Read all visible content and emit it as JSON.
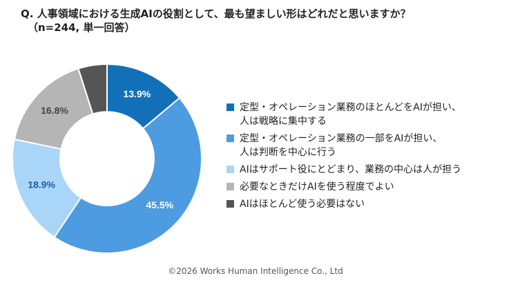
{
  "chart_data": {
    "type": "pie",
    "title": "Q. 人事領域における生成AIの役割として、最も望ましい形はどれだと思いますか？",
    "subtitle": "（n=244, 単一回答）",
    "categories": [
      "定型・オペレーション業務のほとんどをAIが担い、\n人は戦略に集中する",
      "定型・オペレーション業務の一部をAIが担い、\n人は判断を中心に行う",
      "AIはサポート役にとどまり、業務の中心は人が担う",
      "必要なときだけAIを使う程度でよい",
      "AIはほとんど使う必要はない"
    ],
    "values": [
      13.9,
      45.5,
      18.9,
      16.8,
      4.9
    ],
    "value_labels": [
      "13.9%",
      "45.5%",
      "18.9%",
      "16.8%",
      null
    ],
    "colors": [
      "#1270b8",
      "#4d9be0",
      "#a9d6f8",
      "#b5b5b5",
      "#555555"
    ],
    "label_colors": [
      "#ffffff",
      "#ffffff",
      "#1c5ea3",
      "#444444",
      "#ffffff"
    ],
    "legend": "right",
    "footer": "©2026 Works Human Intelligence Co., Ltd"
  }
}
